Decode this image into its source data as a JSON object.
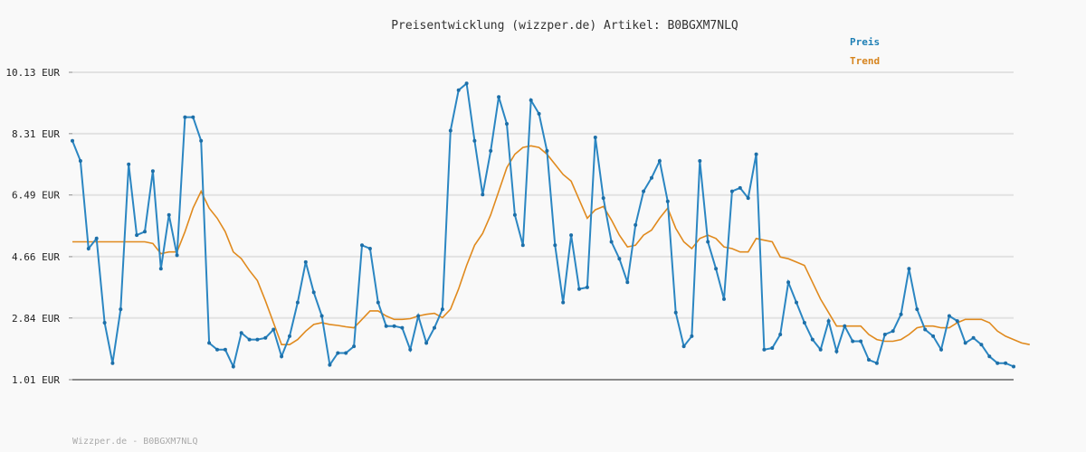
{
  "chart_data": {
    "type": "line",
    "title": "Preisentwicklung (wizzper.de) Artikel: B0BGXM7NLQ",
    "legend": [
      "Preis",
      "Trend"
    ],
    "legend_placement": "top-right",
    "y_ticks": [
      "10.13 EUR",
      "8.31 EUR",
      "6.49 EUR",
      "4.66 EUR",
      "2.84 EUR",
      "1.01 EUR"
    ],
    "y_tick_values": [
      10.13,
      8.31,
      6.49,
      4.66,
      2.84,
      1.01
    ],
    "ylim": [
      1.01,
      10.13
    ],
    "grid": true,
    "colors": {
      "preis": "#2b86c2",
      "trend": "#e08a1e",
      "grid": "#e2e2e2",
      "axis": "#8a8a8a"
    },
    "series": [
      {
        "name": "Preis",
        "values": [
          8.1,
          7.5,
          4.9,
          5.2,
          2.7,
          1.5,
          3.1,
          7.4,
          5.3,
          5.4,
          7.2,
          4.3,
          5.9,
          4.7,
          8.8,
          8.8,
          8.1,
          2.1,
          1.9,
          1.9,
          1.4,
          2.4,
          2.2,
          2.2,
          2.25,
          2.5,
          1.7,
          2.3,
          3.3,
          4.5,
          3.6,
          2.9,
          1.45,
          1.8,
          1.8,
          2.0,
          5.0,
          4.9,
          3.3,
          2.6,
          2.6,
          2.55,
          1.9,
          2.9,
          2.1,
          2.55,
          3.1,
          8.4,
          9.6,
          9.8,
          8.1,
          6.5,
          7.8,
          9.4,
          8.6,
          5.9,
          5.0,
          9.3,
          8.9,
          7.8,
          5.0,
          3.3,
          5.3,
          3.7,
          3.75,
          8.2,
          6.4,
          5.1,
          4.6,
          3.9,
          5.6,
          6.6,
          7.0,
          7.5,
          6.3,
          3.0,
          2.0,
          2.3,
          7.5,
          5.1,
          4.3,
          3.4,
          6.6,
          6.7,
          6.4,
          7.7,
          1.9,
          1.95,
          2.35,
          3.9,
          3.3,
          2.7,
          2.2,
          1.9,
          2.75,
          1.85,
          2.6,
          2.15,
          2.15,
          1.6,
          1.5,
          2.35,
          2.45,
          2.95,
          4.3,
          3.1,
          2.5,
          2.3,
          1.9,
          2.9,
          2.75,
          2.1,
          2.25,
          2.05,
          1.7,
          1.5,
          1.5,
          1.4
        ]
      },
      {
        "name": "Trend",
        "values": [
          5.1,
          5.1,
          5.1,
          5.1,
          5.1,
          5.1,
          5.1,
          5.1,
          5.1,
          5.1,
          5.05,
          4.75,
          4.8,
          4.8,
          5.4,
          6.1,
          6.6,
          6.1,
          5.8,
          5.4,
          4.8,
          4.6,
          4.25,
          3.95,
          3.35,
          2.7,
          2.05,
          2.05,
          2.2,
          2.45,
          2.65,
          2.7,
          2.65,
          2.62,
          2.58,
          2.55,
          2.8,
          3.05,
          3.05,
          2.9,
          2.8,
          2.8,
          2.82,
          2.9,
          2.95,
          2.98,
          2.85,
          3.1,
          3.7,
          4.4,
          5.0,
          5.35,
          5.9,
          6.6,
          7.3,
          7.7,
          7.9,
          7.95,
          7.9,
          7.7,
          7.4,
          7.1,
          6.9,
          6.35,
          5.8,
          6.05,
          6.15,
          5.75,
          5.3,
          4.95,
          5.0,
          5.3,
          5.45,
          5.8,
          6.1,
          5.5,
          5.1,
          4.9,
          5.2,
          5.3,
          5.2,
          4.95,
          4.9,
          4.8,
          4.8,
          5.2,
          5.15,
          5.1,
          4.65,
          4.6,
          4.5,
          4.4,
          3.9,
          3.4,
          3.0,
          2.6,
          2.6,
          2.6,
          2.6,
          2.35,
          2.2,
          2.15,
          2.15,
          2.2,
          2.35,
          2.55,
          2.6,
          2.6,
          2.55,
          2.55,
          2.7,
          2.8,
          2.8,
          2.8,
          2.7,
          2.45,
          2.3,
          2.2,
          2.1,
          2.05
        ]
      }
    ]
  },
  "footer": "Wizzper.de - B0BGXM7NLQ"
}
